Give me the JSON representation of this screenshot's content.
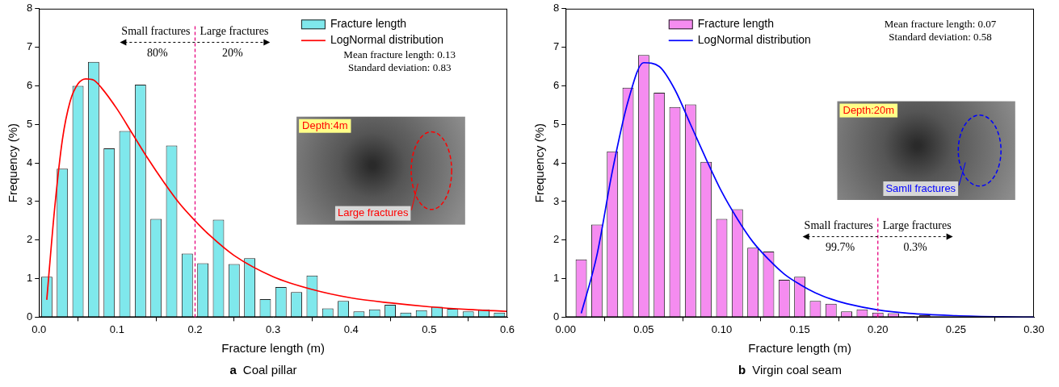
{
  "chart_data": [
    {
      "type": "histogram",
      "panel": "a",
      "title": "Coal pillar",
      "x_label": "Fracture length (m)",
      "y_label": "Frequency (%)",
      "bins": [
        0,
        0.02,
        0.04,
        0.06,
        0.08,
        0.1,
        0.12,
        0.14,
        0.16,
        0.18,
        0.2,
        0.22,
        0.24,
        0.26,
        0.28,
        0.3,
        0.32,
        0.34,
        0.36,
        0.38,
        0.4,
        0.42,
        0.44,
        0.46,
        0.48,
        0.5,
        0.52,
        0.54,
        0.56,
        0.58,
        0.6
      ],
      "series": [
        {
          "name": "Fracture length",
          "type": "bar",
          "color": "#7fe8ec",
          "values": [
            1.05,
            3.85,
            6.0,
            6.62,
            4.38,
            4.83,
            6.03,
            2.55,
            4.45,
            1.65,
            1.4,
            2.53,
            1.38,
            1.53,
            0.47,
            0.78,
            0.65,
            1.08,
            0.23,
            0.42,
            0.15,
            0.2,
            0.32,
            0.12,
            0.18,
            0.27,
            0.22,
            0.15,
            0.2,
            0.12
          ]
        },
        {
          "name": "LogNormal distribution",
          "type": "line",
          "color": "#ff0000",
          "x": [
            0.01,
            0.02,
            0.03,
            0.04,
            0.05,
            0.06,
            0.07,
            0.08,
            0.1,
            0.12,
            0.14,
            0.16,
            0.18,
            0.2,
            0.22,
            0.25,
            0.3,
            0.35,
            0.4,
            0.45,
            0.5,
            0.55,
            0.6
          ],
          "values": [
            0.45,
            2.8,
            4.6,
            5.6,
            6.05,
            6.18,
            6.15,
            5.95,
            5.4,
            4.75,
            4.1,
            3.5,
            2.95,
            2.5,
            2.1,
            1.6,
            1.05,
            0.72,
            0.5,
            0.37,
            0.27,
            0.2,
            0.15
          ]
        }
      ],
      "xlim": [
        0,
        0.6
      ],
      "xticks": [
        {
          "value": 0,
          "label": "0.0"
        },
        0.1,
        0.2,
        0.3,
        0.4,
        0.5,
        0.6
      ],
      "ylim": [
        0,
        8
      ],
      "yticks": [
        0,
        1,
        2,
        3,
        4,
        5,
        6,
        7,
        8
      ],
      "grid": false,
      "legend": "upper right",
      "annotations": {
        "divider": 0.2,
        "left_text": "Small fractures",
        "right_text": "Large fractures",
        "left_share": "80%",
        "right_share": "20%",
        "stats": [
          "Mean fracture length: 0.13",
          "Standard deviation: 0.83"
        ],
        "inset_depth": "Depth:4m",
        "inset_text": "Large fractures"
      }
    },
    {
      "type": "histogram",
      "panel": "b",
      "title": "Virgin coal seam",
      "x_label": "Fracture length (m)",
      "y_label": "Frequency (%)",
      "bins": [
        0.005,
        0.015,
        0.025,
        0.035,
        0.045,
        0.055,
        0.065,
        0.075,
        0.085,
        0.095,
        0.105,
        0.115,
        0.125,
        0.135,
        0.145,
        0.155,
        0.165,
        0.175,
        0.185,
        0.195,
        0.205,
        0.215,
        0.225,
        0.235
      ],
      "series": [
        {
          "name": "Fracture length",
          "type": "bar",
          "color": "#f58cf0",
          "values": [
            1.5,
            2.4,
            4.3,
            5.95,
            6.8,
            5.82,
            5.45,
            5.52,
            4.03,
            2.55,
            2.8,
            1.8,
            1.7,
            0.97,
            1.05,
            0.42,
            0.35,
            0.15,
            0.2,
            0.12,
            0.1,
            0.03,
            0.05
          ]
        },
        {
          "name": "LogNormal distribution",
          "type": "line",
          "color": "#0000ff",
          "x": [
            0.01,
            0.02,
            0.03,
            0.04,
            0.05,
            0.06,
            0.07,
            0.08,
            0.09,
            0.1,
            0.11,
            0.12,
            0.13,
            0.14,
            0.15,
            0.16,
            0.17,
            0.18,
            0.2,
            0.22,
            0.25,
            0.28,
            0.3
          ],
          "values": [
            0.1,
            1.6,
            3.8,
            5.6,
            6.6,
            6.5,
            5.9,
            5.0,
            4.1,
            3.25,
            2.55,
            1.95,
            1.5,
            1.12,
            0.85,
            0.63,
            0.47,
            0.35,
            0.19,
            0.1,
            0.04,
            0.01,
            0
          ]
        }
      ],
      "xlim": [
        0,
        0.3
      ],
      "xticks": [
        {
          "value": 0,
          "label": "0.00"
        },
        {
          "value": 0.05,
          "label": "0.05"
        },
        {
          "value": 0.1,
          "label": "0.10"
        },
        {
          "value": 0.15,
          "label": "0.15"
        },
        {
          "value": 0.2,
          "label": "0.20"
        },
        {
          "value": 0.25,
          "label": "0.25"
        },
        {
          "value": 0.3,
          "label": "0.30"
        }
      ],
      "ylim": [
        0,
        8
      ],
      "yticks": [
        0,
        1,
        2,
        3,
        4,
        5,
        6,
        7,
        8
      ],
      "grid": false,
      "legend": "upper right",
      "annotations": {
        "divider": 0.2,
        "left_text": "Small fractures",
        "right_text": "Large fractures",
        "left_share": "99.7%",
        "right_share": "0.3%",
        "stats": [
          "Mean fracture length: 0.07",
          "Standard deviation: 0.58"
        ],
        "inset_depth": "Depth:20m",
        "inset_text": "Samll fractures"
      }
    }
  ]
}
